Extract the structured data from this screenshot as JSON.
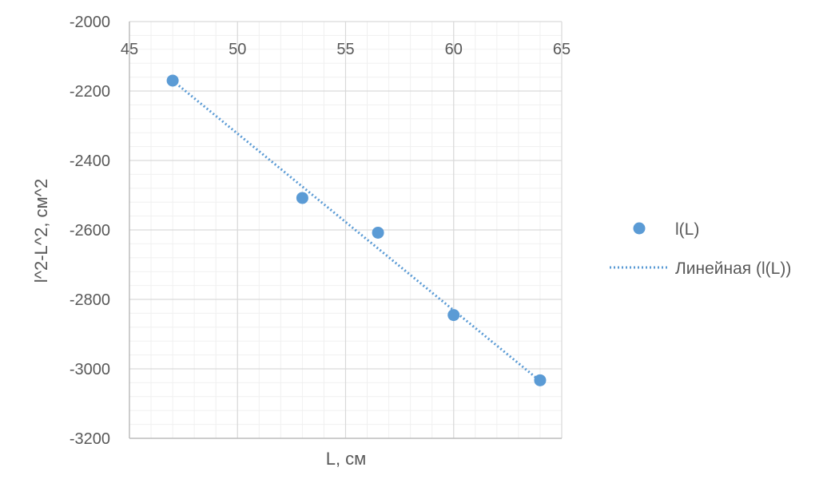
{
  "chart_data": {
    "type": "scatter",
    "title": "",
    "xlabel": "L, см",
    "ylabel": "l^2-L^2, см^2",
    "xlim": [
      45,
      65
    ],
    "ylim": [
      -3200,
      -2000
    ],
    "x_ticks": [
      45,
      50,
      55,
      60,
      65
    ],
    "y_ticks": [
      -2000,
      -2200,
      -2400,
      -2600,
      -2800,
      -3000,
      -3200
    ],
    "x_minor_step": 1,
    "y_minor_step": 40,
    "x_axis_labels_position": "top",
    "grid": true,
    "legend_position": "right",
    "series": [
      {
        "name": "l(L)",
        "marker": "circle",
        "color": "#5B9BD5",
        "x": [
          47,
          53,
          56.5,
          60,
          64
        ],
        "y": [
          -2170,
          -2508,
          -2608,
          -2845,
          -3033
        ]
      }
    ],
    "trendline": {
      "name": "Линейная (l(L))",
      "type": "linear",
      "style": "dotted",
      "color": "#5B9BD5",
      "x": [
        47,
        64
      ],
      "y": [
        -2170,
        -3035
      ]
    }
  }
}
